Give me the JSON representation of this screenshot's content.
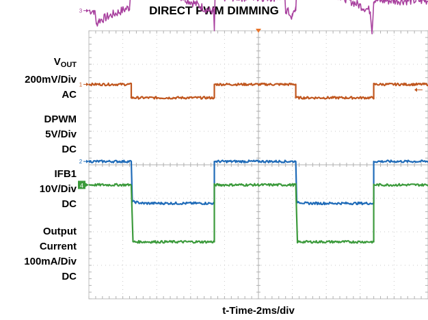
{
  "chart_data": {
    "type": "line",
    "title": "DIRECT PWM DIMMING",
    "xlabel": "t-Time-2ms/div",
    "grid": true,
    "x_divisions": 10,
    "y_divisions": 8,
    "channels": [
      {
        "name": "VOUT",
        "name_main": "V",
        "name_sub": "OUT",
        "scale": "200mV/Div",
        "coupling": "AC",
        "marker": "3",
        "color": "#a8409e",
        "points": [
          [
            0,
            4.6
          ],
          [
            0.15,
            4.6
          ],
          [
            0.18,
            4.6
          ],
          [
            0.22,
            4.2
          ],
          [
            0.28,
            4.3
          ],
          [
            1.2,
            4.7
          ],
          [
            1.25,
            5.6
          ],
          [
            1.75,
            5.55
          ],
          [
            1.75,
            5.55
          ],
          [
            2.55,
            5.1
          ],
          [
            2.55,
            5.1
          ],
          [
            3.55,
            4.6
          ],
          [
            3.68,
            4.6
          ],
          [
            3.7,
            4.0
          ],
          [
            3.72,
            5.0
          ],
          [
            4.2,
            5.0
          ],
          [
            5,
            5.0
          ],
          [
            5.78,
            5.0
          ],
          [
            5.8,
            4.6
          ],
          [
            5.85,
            4.6
          ],
          [
            6.0,
            4.4
          ],
          [
            6.1,
            4.7
          ],
          [
            6.15,
            5.6
          ],
          [
            7.25,
            5.1
          ],
          [
            7.5,
            5.0
          ],
          [
            8.3,
            4.6
          ],
          [
            8.35,
            4.0
          ],
          [
            8.4,
            4.9
          ],
          [
            10,
            4.9
          ]
        ]
      },
      {
        "name": "DPWM",
        "scale": "5V/Div",
        "coupling": "DC",
        "marker": "1",
        "color": "#c0561e",
        "points": [
          [
            0,
            2.4
          ],
          [
            1.25,
            2.4
          ],
          [
            1.25,
            2.0
          ],
          [
            3.7,
            2.0
          ],
          [
            3.7,
            2.4
          ],
          [
            6.1,
            2.4
          ],
          [
            6.1,
            2.0
          ],
          [
            8.4,
            2.0
          ],
          [
            8.4,
            2.4
          ],
          [
            10,
            2.4
          ]
        ]
      },
      {
        "name": "IFB1",
        "scale": "10V/Div",
        "coupling": "DC",
        "marker": "2",
        "color": "#1f6bb8",
        "points": [
          [
            0,
            0.1
          ],
          [
            1.25,
            0.1
          ],
          [
            1.28,
            -1.1
          ],
          [
            1.6,
            -1.15
          ],
          [
            3.7,
            -1.15
          ],
          [
            3.7,
            0.1
          ],
          [
            6.1,
            0.1
          ],
          [
            6.13,
            -1.1
          ],
          [
            6.4,
            -1.15
          ],
          [
            8.4,
            -1.15
          ],
          [
            8.4,
            0.1
          ],
          [
            10,
            0.1
          ]
        ]
      },
      {
        "name": "Output Current",
        "scale": "100mA/Div",
        "coupling": "DC",
        "marker": "4",
        "color": "#3b9a3b",
        "points": [
          [
            0,
            -0.6
          ],
          [
            1.25,
            -0.6
          ],
          [
            1.3,
            -2.3
          ],
          [
            3.7,
            -2.3
          ],
          [
            3.7,
            -0.6
          ],
          [
            6.1,
            -0.6
          ],
          [
            6.15,
            -2.3
          ],
          [
            8.4,
            -2.3
          ],
          [
            8.4,
            -0.6
          ],
          [
            10,
            -0.6
          ]
        ]
      }
    ]
  }
}
